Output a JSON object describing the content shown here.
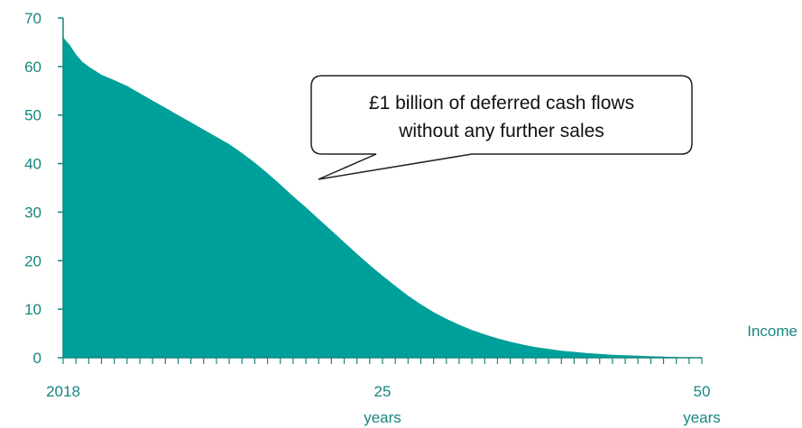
{
  "chart_data": {
    "type": "area",
    "title": "",
    "xlabel": "",
    "ylabel": "",
    "legend": [
      "Income"
    ],
    "ylim": [
      0,
      70
    ],
    "yticks": [
      0,
      10,
      20,
      30,
      40,
      50,
      60,
      70
    ],
    "xlim": [
      0,
      50
    ],
    "xticks": [
      {
        "value": 0,
        "label": "2018",
        "sublabel": ""
      },
      {
        "value": 25,
        "label": "25",
        "sublabel": "years"
      },
      {
        "value": 50,
        "label": "50",
        "sublabel": "years"
      }
    ],
    "series": [
      {
        "name": "Income",
        "color": "#00a09a",
        "x": [
          0,
          0.5,
          1,
          1.5,
          2,
          3,
          4,
          5,
          6,
          7,
          8,
          9,
          10,
          11,
          12,
          13,
          14,
          15,
          16,
          17,
          18,
          19,
          20,
          21,
          22,
          23,
          24,
          25,
          26,
          27,
          28,
          29,
          30,
          31,
          32,
          33,
          34,
          35,
          36,
          37,
          38,
          39,
          40,
          41,
          42,
          43,
          44,
          45,
          46,
          47,
          48,
          49,
          50
        ],
        "values": [
          66,
          64.5,
          62.5,
          61,
          60,
          58.3,
          57.2,
          56,
          54.5,
          53,
          51.5,
          50,
          48.5,
          47,
          45.5,
          44,
          42.2,
          40.2,
          38,
          35.7,
          33.3,
          31,
          28.6,
          26.2,
          23.8,
          21.4,
          19.1,
          16.9,
          14.8,
          12.8,
          11,
          9.4,
          8,
          6.8,
          5.7,
          4.8,
          4,
          3.3,
          2.7,
          2.2,
          1.8,
          1.45,
          1.2,
          0.95,
          0.78,
          0.62,
          0.5,
          0.4,
          0.3,
          0.22,
          0.15,
          0.08,
          0
        ]
      }
    ],
    "annotations": [
      {
        "line1": "£1 billion of deferred cash flows",
        "line2": "without any further sales"
      }
    ]
  }
}
